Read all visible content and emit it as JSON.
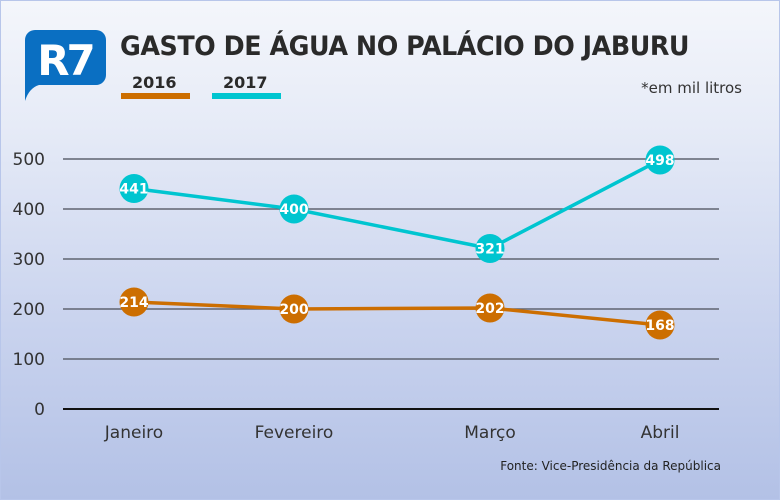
{
  "title": "GASTO DE ÁGUA NO PALÁCIO DO JABURU",
  "unit_note": "*em mil litros",
  "source": "Fonte: Vice-Presidência da República",
  "logo_text": "R7",
  "chart_data": {
    "type": "line",
    "categories": [
      "Janeiro",
      "Fevereiro",
      "Março",
      "Abril"
    ],
    "series": [
      {
        "name": "2016",
        "color": "#cc6e00",
        "values": [
          214,
          200,
          202,
          168
        ]
      },
      {
        "name": "2017",
        "color": "#00c5d0",
        "values": [
          441,
          400,
          321,
          498
        ]
      }
    ],
    "ylim": [
      0,
      500
    ],
    "yticks": [
      "0",
      "100",
      "200",
      "300",
      "400",
      "500"
    ],
    "grid": true,
    "legend": "top-left",
    "data_labels": true
  }
}
